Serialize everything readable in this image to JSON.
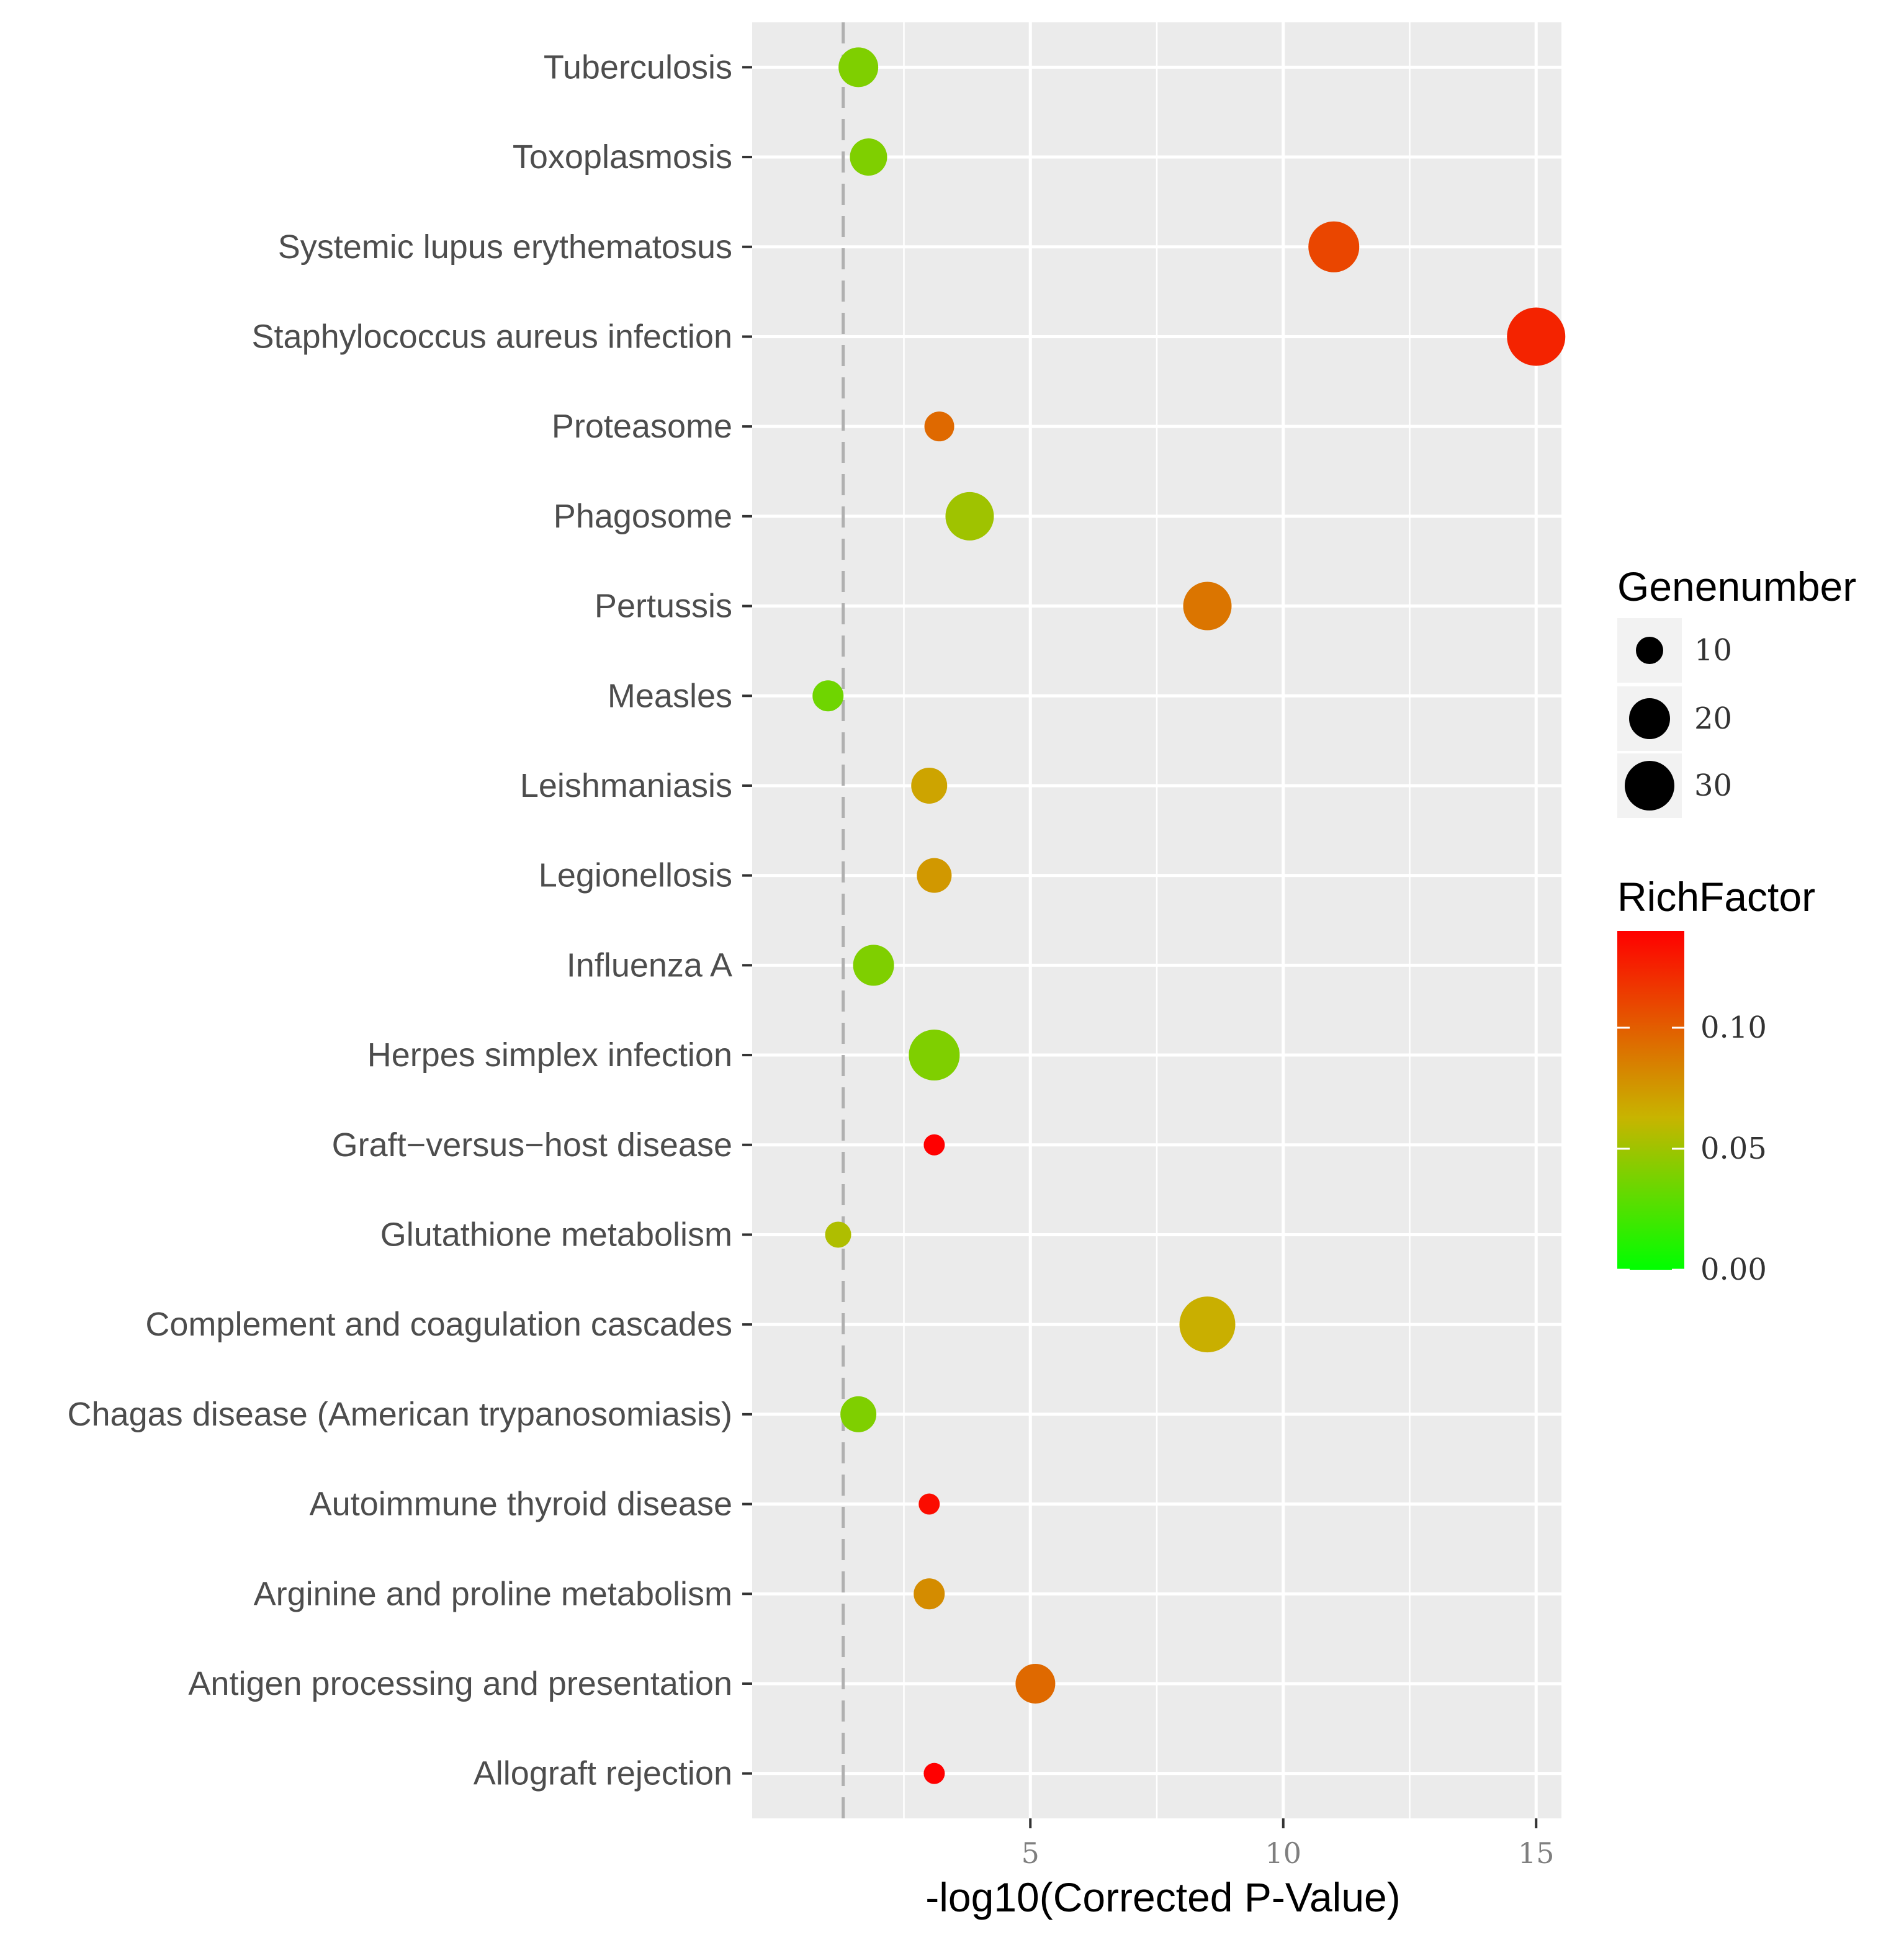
{
  "chart_data": {
    "type": "scatter",
    "title": "",
    "xlabel": "-log10(Corrected P-Value)",
    "ylabel": "",
    "xlim": [
      -0.5,
      15.5
    ],
    "x_ticks": [
      5,
      10,
      15
    ],
    "x_tick_labels": [
      "5",
      "10",
      "15"
    ],
    "threshold_line": 1.3,
    "categories": [
      "Tuberculosis",
      "Toxoplasmosis",
      "Systemic lupus erythematosus",
      "Staphylococcus aureus infection",
      "Proteasome",
      "Phagosome",
      "Pertussis",
      "Measles",
      "Leishmaniasis",
      "Legionellosis",
      "Influenza A",
      "Herpes simplex infection",
      "Graft−versus−host disease",
      "Glutathione metabolism",
      "Complement and coagulation cascades",
      "Chagas disease (American trypanosomiasis)",
      "Autoimmune thyroid disease",
      "Arginine and proline metabolism",
      "Antigen processing and presentation",
      "Allograft rejection"
    ],
    "points": [
      {
        "category": "Tuberculosis",
        "x": 1.6,
        "genenumber": 19,
        "richfactor": 0.04
      },
      {
        "category": "Toxoplasmosis",
        "x": 1.8,
        "genenumber": 17,
        "richfactor": 0.04
      },
      {
        "category": "Systemic lupus erythematosus",
        "x": 11.0,
        "genenumber": 28,
        "richfactor": 0.11
      },
      {
        "category": "Staphylococcus aureus infection",
        "x": 15.0,
        "genenumber": 34,
        "richfactor": 0.125
      },
      {
        "category": "Proteasome",
        "x": 3.2,
        "genenumber": 11,
        "richfactor": 0.095
      },
      {
        "category": "Phagosome",
        "x": 3.8,
        "genenumber": 26,
        "richfactor": 0.05
      },
      {
        "category": "Pertussis",
        "x": 8.5,
        "genenumber": 26,
        "richfactor": 0.09
      },
      {
        "category": "Measles",
        "x": 1.0,
        "genenumber": 12,
        "richfactor": 0.035
      },
      {
        "category": "Leishmaniasis",
        "x": 3.0,
        "genenumber": 16,
        "richfactor": 0.07
      },
      {
        "category": "Legionellosis",
        "x": 3.1,
        "genenumber": 15,
        "richfactor": 0.075
      },
      {
        "category": "Influenza A",
        "x": 1.9,
        "genenumber": 20,
        "richfactor": 0.04
      },
      {
        "category": "Herpes simplex infection",
        "x": 3.1,
        "genenumber": 28,
        "richfactor": 0.04
      },
      {
        "category": "Graft−versus−host disease",
        "x": 3.1,
        "genenumber": 4,
        "richfactor": 0.14
      },
      {
        "category": "Glutathione metabolism",
        "x": 1.2,
        "genenumber": 8,
        "richfactor": 0.055
      },
      {
        "category": "Complement and coagulation cascades",
        "x": 8.5,
        "genenumber": 32,
        "richfactor": 0.065
      },
      {
        "category": "Chagas disease (American trypanosomiasis)",
        "x": 1.6,
        "genenumber": 16,
        "richfactor": 0.04
      },
      {
        "category": "Autoimmune thyroid disease",
        "x": 3.0,
        "genenumber": 4,
        "richfactor": 0.135
      },
      {
        "category": "Arginine and proline metabolism",
        "x": 3.0,
        "genenumber": 12,
        "richfactor": 0.08
      },
      {
        "category": "Antigen processing and presentation",
        "x": 5.1,
        "genenumber": 19,
        "richfactor": 0.095
      },
      {
        "category": "Allograft rejection",
        "x": 3.1,
        "genenumber": 4,
        "richfactor": 0.14
      }
    ],
    "size_legend": {
      "title": "Genenumber",
      "values": [
        10,
        20,
        30
      ],
      "labels": [
        "10",
        "20",
        "30"
      ]
    },
    "color_legend": {
      "title": "RichFactor",
      "range": [
        0.0,
        0.14
      ],
      "ticks": [
        0.0,
        0.05,
        0.1
      ],
      "tick_labels": [
        "0.00",
        "0.05",
        "0.10"
      ],
      "colors": [
        "#00ff00",
        "#c8b400",
        "#ff0000"
      ]
    },
    "colors": {
      "panel_background": "#ebebeb",
      "grid": "#ffffff",
      "threshold_line": "#b0b0b0",
      "tick": "#333333"
    }
  }
}
